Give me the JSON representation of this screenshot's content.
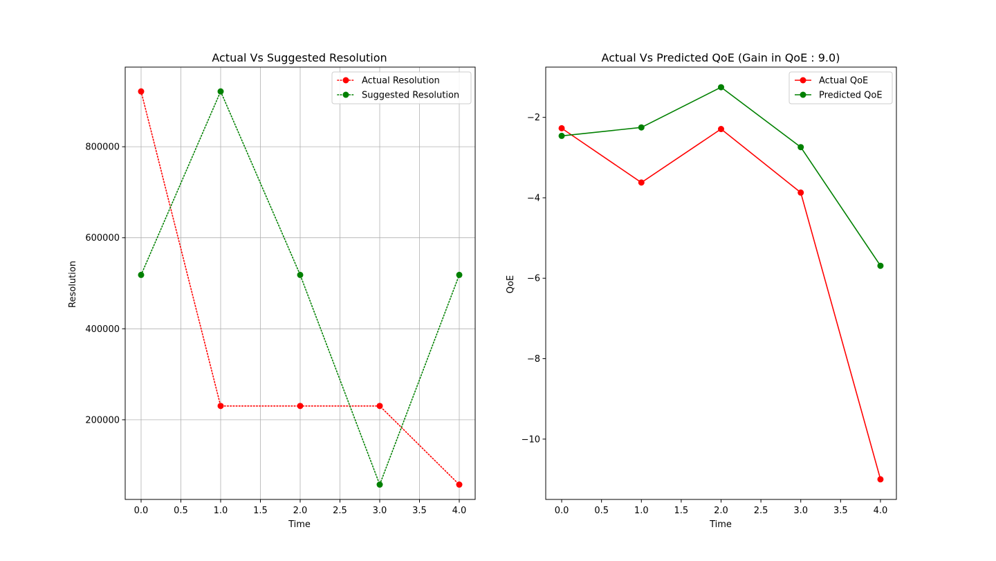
{
  "chart_data": [
    {
      "type": "line",
      "title": "Actual Vs Suggested Resolution",
      "xlabel": "Time",
      "ylabel": "Resolution",
      "xlim": [
        -0.2,
        4.2
      ],
      "ylim": [
        25000,
        975000
      ],
      "grid": true,
      "legend_position": "top-right",
      "x_ticks": [
        0.0,
        0.5,
        1.0,
        1.5,
        2.0,
        2.5,
        3.0,
        3.5,
        4.0
      ],
      "x_tick_labels": [
        "0.0",
        "0.5",
        "1.0",
        "1.5",
        "2.0",
        "2.5",
        "3.0",
        "3.5",
        "4.0"
      ],
      "y_ticks": [
        200000,
        400000,
        600000,
        800000
      ],
      "y_tick_labels": [
        "200000",
        "400000",
        "600000",
        "800000"
      ],
      "x": [
        0,
        1,
        2,
        3,
        4
      ],
      "series": [
        {
          "name": "Actual Resolution",
          "values": [
            921600,
            230400,
            230400,
            230400,
            57600
          ],
          "color": "#ff0000",
          "linestyle": "dotted",
          "marker": "circle"
        },
        {
          "name": "Suggested Resolution",
          "values": [
            518400,
            921600,
            518400,
            57600,
            518400
          ],
          "color": "#008000",
          "linestyle": "dotted",
          "marker": "circle"
        }
      ]
    },
    {
      "type": "line",
      "title": "Actual Vs Predicted QoE (Gain in QoE : 9.0)",
      "xlabel": "Time",
      "ylabel": "QoE",
      "xlim": [
        -0.2,
        4.2
      ],
      "ylim": [
        -11.5,
        -0.75
      ],
      "grid": false,
      "legend_position": "top-right",
      "x_ticks": [
        0.0,
        0.5,
        1.0,
        1.5,
        2.0,
        2.5,
        3.0,
        3.5,
        4.0
      ],
      "x_tick_labels": [
        "0.0",
        "0.5",
        "1.0",
        "1.5",
        "2.0",
        "2.5",
        "3.0",
        "3.5",
        "4.0"
      ],
      "y_ticks": [
        -10,
        -8,
        -6,
        -4,
        -2
      ],
      "y_tick_labels": [
        "−10",
        "−8",
        "−6",
        "−4",
        "−2"
      ],
      "x": [
        0,
        1,
        2,
        3,
        4
      ],
      "series": [
        {
          "name": "Actual QoE",
          "values": [
            -2.27,
            -3.62,
            -2.29,
            -3.87,
            -11.0
          ],
          "color": "#ff0000",
          "linestyle": "solid",
          "marker": "circle"
        },
        {
          "name": "Predicted QoE",
          "values": [
            -2.46,
            -2.25,
            -1.25,
            -2.74,
            -5.69
          ],
          "color": "#008000",
          "linestyle": "solid",
          "marker": "circle"
        }
      ]
    }
  ]
}
